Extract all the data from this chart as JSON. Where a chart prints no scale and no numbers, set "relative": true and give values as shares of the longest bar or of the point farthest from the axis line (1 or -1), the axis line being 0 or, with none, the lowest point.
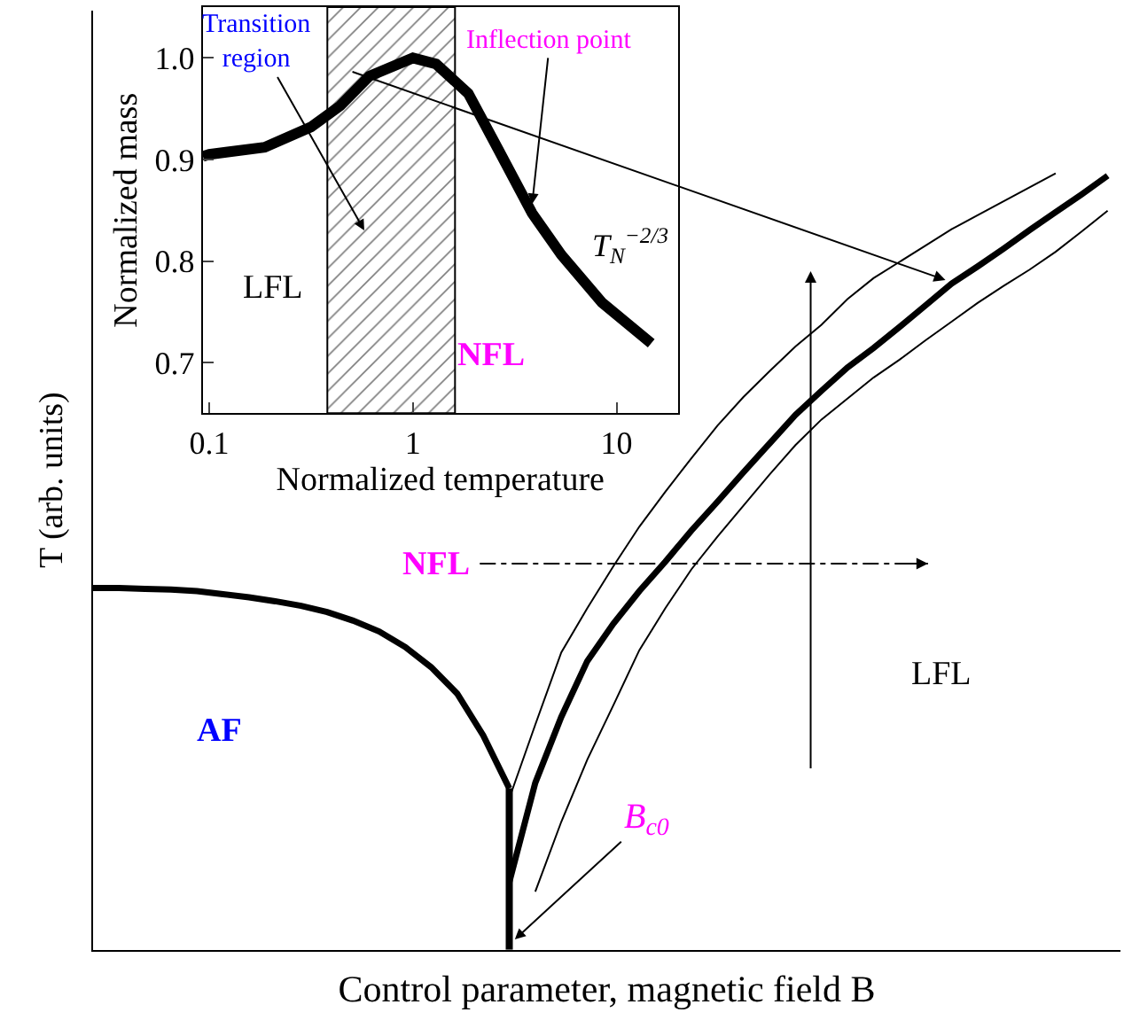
{
  "chart_data": [
    {
      "type": "line",
      "relative": true,
      "xlabel": "Control parameter, magnetic field B",
      "ylabel": "T (arb. units)",
      "tick_labels": false,
      "marker": "none",
      "categories": [
        null,
        null,
        null,
        null,
        null,
        null,
        null,
        null,
        null,
        null,
        null,
        null,
        null,
        null,
        null,
        null,
        null,
        null,
        null,
        null,
        null,
        null,
        null,
        null,
        null,
        null,
        null,
        null,
        null,
        null,
        null,
        null,
        null,
        null,
        null,
        null,
        null,
        null,
        null,
        null
      ],
      "series": [
        {
          "color": "#000000",
          "values": [
            0.466,
            0.466,
            0.465,
            0.464,
            0.462,
            0.458,
            0.454,
            0.449,
            0.443,
            0.435,
            0.424,
            0.41,
            0.39,
            0.364,
            0.33,
            0.276,
            0.208,
            null,
            null,
            null,
            null,
            null,
            null,
            null,
            null,
            null,
            null,
            null,
            null,
            null,
            null,
            null,
            null,
            null,
            null,
            null,
            null,
            null,
            null,
            null
          ]
        },
        {
          "color": "#000000",
          "values": [
            null,
            null,
            null,
            null,
            null,
            null,
            null,
            null,
            null,
            null,
            null,
            null,
            null,
            null,
            null,
            null,
            0.087,
            0.215,
            0.3,
            0.372,
            0.42,
            0.462,
            0.5,
            0.54,
            0.577,
            0.615,
            0.652,
            0.689,
            0.72,
            0.75,
            0.775,
            0.802,
            0.83,
            0.858,
            0.88,
            0.903,
            0.927,
            0.95,
            0.973,
            0.997
          ]
        },
        {
          "color": "#000000",
          "values": [
            null,
            null,
            null,
            null,
            null,
            null,
            null,
            null,
            null,
            null,
            null,
            null,
            null,
            null,
            null,
            null,
            0.195,
            0.29,
            0.383,
            0.44,
            0.494,
            0.545,
            0.59,
            0.633,
            0.675,
            0.712,
            0.745,
            0.777,
            0.805,
            0.838,
            0.865,
            0.886,
            0.907,
            0.928,
            0.946,
            0.964,
            0.982,
            1.0,
            null,
            null
          ]
        },
        {
          "color": "#000000",
          "values": [
            null,
            null,
            null,
            null,
            null,
            null,
            null,
            null,
            null,
            null,
            null,
            null,
            null,
            null,
            null,
            null,
            null,
            0.075,
            0.165,
            0.245,
            0.315,
            0.386,
            0.44,
            0.49,
            0.532,
            0.572,
            0.612,
            0.65,
            0.683,
            0.71,
            0.737,
            0.76,
            0.785,
            0.809,
            0.833,
            0.855,
            0.876,
            0.899,
            0.925,
            0.952
          ]
        }
      ],
      "annotations": [
        "NFL",
        "LFL",
        "AF",
        "B$_{c0}$"
      ]
    },
    {
      "type": "line",
      "xlabel": "Normalized temperature",
      "ylabel": "Normalized mass",
      "log": "x",
      "xlim": [
        0.093,
        20
      ],
      "ylim": [
        0.65,
        1.05
      ],
      "xticks": [
        0.1,
        1,
        10
      ],
      "yticks": [
        0.7,
        0.8,
        0.9,
        {
          "value": 1,
          "label": "1.0"
        }
      ],
      "marker": "none",
      "series": [
        {
          "color": "#000000",
          "x": [
            0.093,
            0.1,
            0.187,
            0.316,
            0.44,
            0.61,
            1.0,
            1.3,
            1.87,
            2.59,
            3.85,
            5.36,
            8.48,
            14.8
          ],
          "values": [
            0.903,
            0.905,
            0.912,
            0.932,
            0.953,
            0.982,
            1.0,
            0.994,
            0.965,
            0.912,
            0.847,
            0.806,
            0.759,
            0.719
          ]
        }
      ],
      "bands": [
        {
          "axis": "x",
          "from": 0.38,
          "to": 1.61
        }
      ],
      "annotations": [
        "Transition region",
        {
          "text": "Inflection point",
          "x": 3.85,
          "y": 0.856
        },
        "T$_{N}$$^{−2/3}$",
        "LFL",
        "NFL"
      ]
    }
  ]
}
